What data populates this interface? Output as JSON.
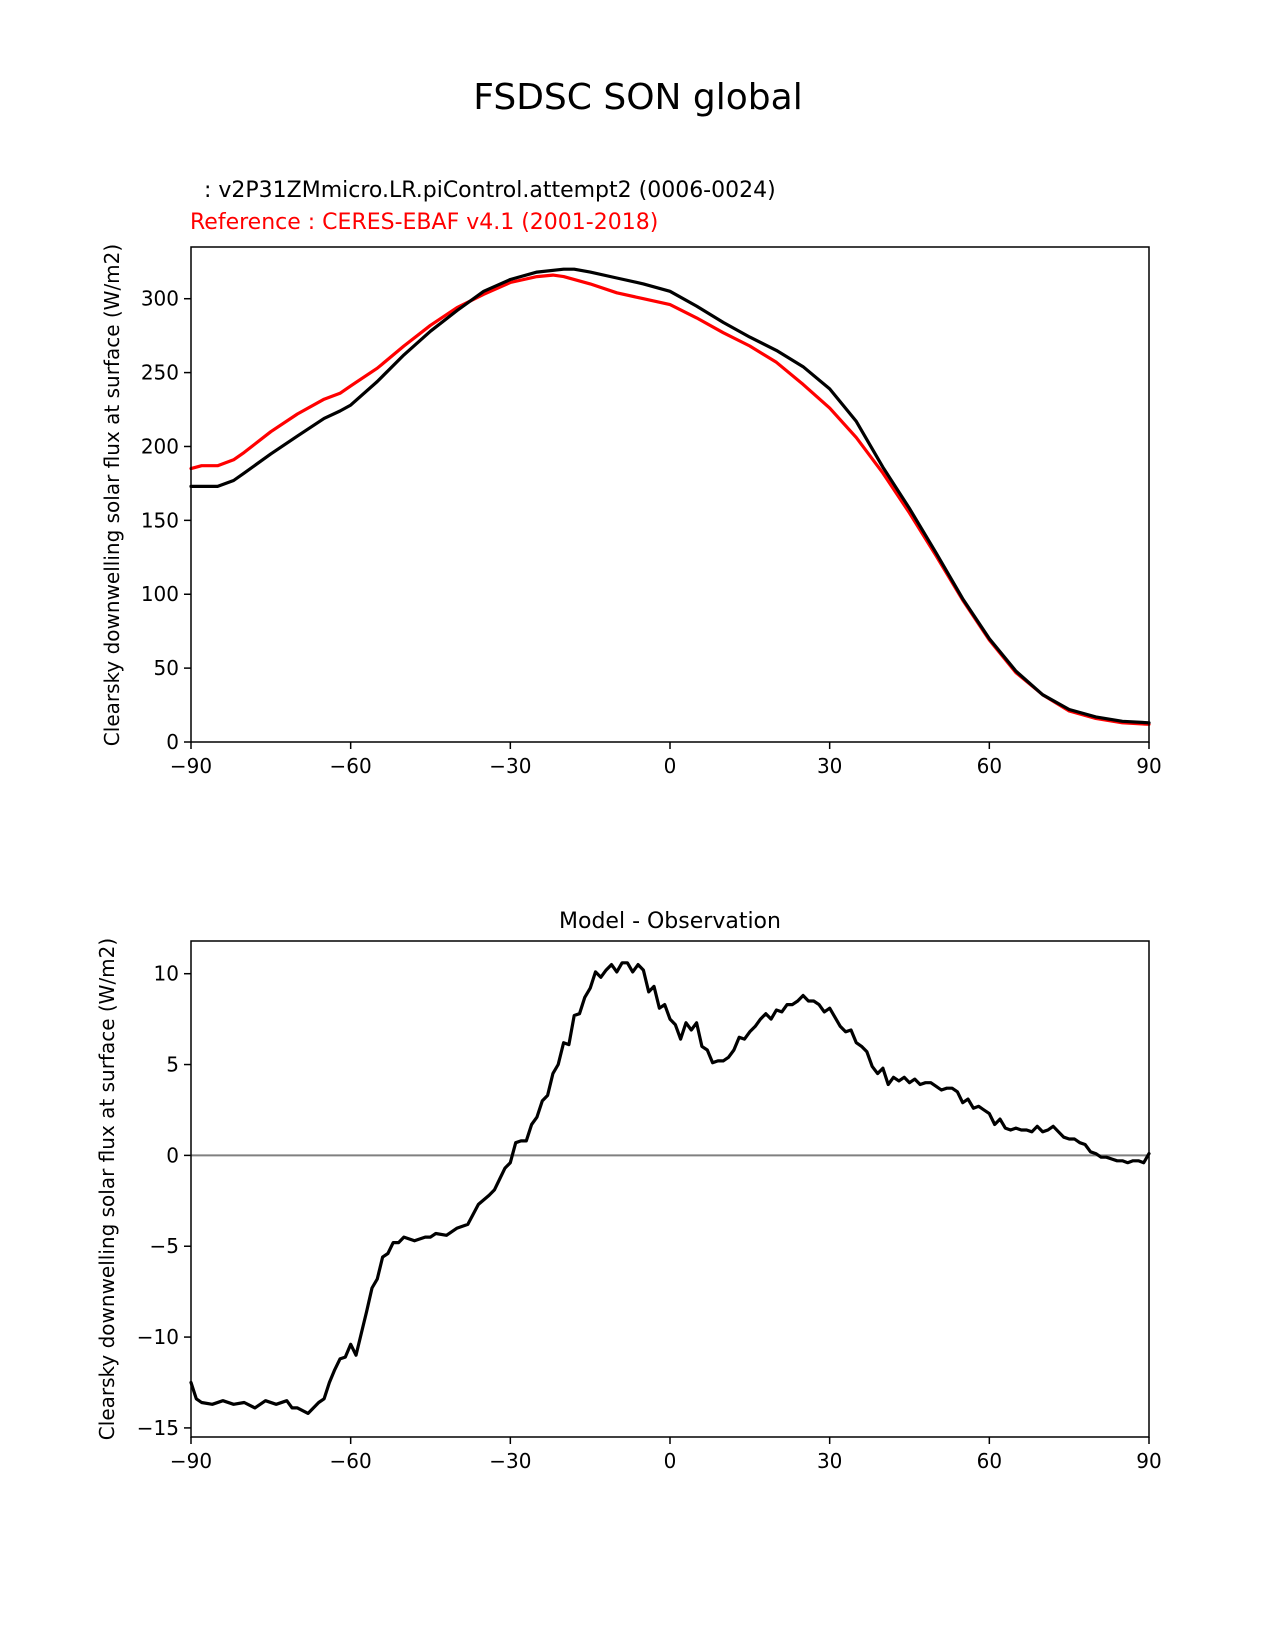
{
  "figure_title": "FSDSC SON global",
  "colors": {
    "test": "#000000",
    "reference": "#ff0000",
    "zero_line": "#808080",
    "axes": "#000000"
  },
  "chart_data": [
    {
      "type": "line",
      "test_label": "  : v2P31ZMmicro.LR.piControl.attempt2 (0006-0024)",
      "ref_label": "Reference : CERES-EBAF v4.1 (2001-2018)",
      "xlabel": "",
      "ylabel": "Clearsky downwelling solar flux at surface (W/m2)",
      "xlim": [
        -90,
        90
      ],
      "ylim": [
        0,
        335
      ],
      "xticks": [
        -90,
        -60,
        -30,
        0,
        30,
        60,
        90
      ],
      "xtick_labels": [
        "−90",
        "−60",
        "−30",
        "0",
        "30",
        "60",
        "90"
      ],
      "yticks": [
        0,
        50,
        100,
        150,
        200,
        250,
        300
      ],
      "ytick_labels": [
        "0",
        "50",
        "100",
        "150",
        "200",
        "250",
        "300"
      ],
      "series": [
        {
          "name": "test",
          "x": [
            -90,
            -85,
            -82,
            -80,
            -75,
            -70,
            -65,
            -62,
            -60,
            -55,
            -50,
            -45,
            -40,
            -35,
            -30,
            -25,
            -20,
            -18,
            -15,
            -10,
            -5,
            0,
            5,
            10,
            15,
            20,
            25,
            30,
            35,
            40,
            45,
            50,
            55,
            60,
            65,
            70,
            75,
            80,
            85,
            90
          ],
          "values": [
            173,
            173,
            177,
            182,
            195,
            207,
            219,
            224,
            228,
            244,
            262,
            278,
            292,
            305,
            313,
            318,
            320,
            320,
            318,
            314,
            310,
            305,
            295,
            284,
            274,
            265,
            254,
            239,
            217,
            186,
            158,
            128,
            97,
            70,
            48,
            32,
            22,
            17,
            14,
            13
          ]
        },
        {
          "name": "reference",
          "x": [
            -90,
            -88,
            -85,
            -82,
            -80,
            -75,
            -70,
            -65,
            -62,
            -60,
            -55,
            -50,
            -45,
            -40,
            -35,
            -30,
            -25,
            -22,
            -20,
            -15,
            -10,
            -5,
            0,
            5,
            10,
            15,
            20,
            25,
            30,
            35,
            40,
            45,
            50,
            55,
            60,
            65,
            70,
            75,
            80,
            85,
            90
          ],
          "values": [
            185,
            187,
            187,
            191,
            196,
            210,
            222,
            232,
            236,
            241,
            253,
            268,
            282,
            294,
            303,
            311,
            315,
            316,
            315,
            310,
            304,
            300,
            296,
            287,
            277,
            268,
            257,
            242,
            226,
            206,
            182,
            155,
            126,
            96,
            69,
            47,
            32,
            21,
            16,
            13,
            12
          ]
        }
      ]
    },
    {
      "type": "line",
      "title": "Model - Observation",
      "xlabel": "",
      "ylabel": "Clearsky downwelling solar flux at surface (W/m2)",
      "xlim": [
        -90,
        90
      ],
      "ylim": [
        -15.5,
        11.8
      ],
      "xticks": [
        -90,
        -60,
        -30,
        0,
        30,
        60,
        90
      ],
      "xtick_labels": [
        "−90",
        "−60",
        "−30",
        "0",
        "30",
        "60",
        "90"
      ],
      "yticks": [
        -15,
        -10,
        -5,
        0,
        5,
        10
      ],
      "ytick_labels": [
        "−15",
        "−10",
        "−5",
        "0",
        "5",
        "10"
      ],
      "zero_line": 0,
      "series": [
        {
          "name": "difference",
          "x": [
            -90,
            -89,
            -88,
            -86,
            -84,
            -82,
            -80,
            -78,
            -76,
            -74,
            -72,
            -71,
            -70,
            -68,
            -66,
            -65,
            -64,
            -63,
            -62,
            -61,
            -60,
            -59,
            -58,
            -57,
            -56,
            -55,
            -54,
            -53,
            -52,
            -51,
            -50,
            -48,
            -46,
            -45,
            -44,
            -42,
            -40,
            -38,
            -36,
            -34,
            -33,
            -32,
            -31,
            -30,
            -29,
            -28,
            -27,
            -26,
            -25,
            -24,
            -23,
            -22,
            -21,
            -20,
            -19,
            -18,
            -17,
            -16,
            -15,
            -14,
            -13,
            -12,
            -11,
            -10,
            -9,
            -8,
            -7,
            -6,
            -5,
            -4,
            -3,
            -2,
            -1,
            0,
            1,
            2,
            3,
            4,
            5,
            6,
            7,
            8,
            9,
            10,
            11,
            12,
            13,
            14,
            15,
            16,
            17,
            18,
            19,
            20,
            21,
            22,
            23,
            24,
            25,
            26,
            27,
            28,
            29,
            30,
            31,
            32,
            33,
            34,
            35,
            36,
            37,
            38,
            39,
            40,
            41,
            42,
            43,
            44,
            45,
            46,
            47,
            48,
            49,
            50,
            51,
            52,
            53,
            54,
            55,
            56,
            57,
            58,
            59,
            60,
            61,
            62,
            63,
            64,
            65,
            66,
            67,
            68,
            69,
            70,
            71,
            72,
            73,
            74,
            75,
            76,
            77,
            78,
            79,
            80,
            81,
            82,
            83,
            84,
            85,
            86,
            87,
            88,
            89,
            90
          ],
          "values": [
            -12.5,
            -13.4,
            -13.6,
            -13.7,
            -13.5,
            -13.7,
            -13.6,
            -13.9,
            -13.5,
            -13.7,
            -13.5,
            -13.9,
            -13.9,
            -14.2,
            -13.6,
            -13.4,
            -12.5,
            -11.8,
            -11.2,
            -11.1,
            -10.4,
            -11.0,
            -9.8,
            -8.6,
            -7.3,
            -6.8,
            -5.6,
            -5.4,
            -4.8,
            -4.8,
            -4.5,
            -4.7,
            -4.5,
            -4.5,
            -4.3,
            -4.4,
            -4.0,
            -3.8,
            -2.7,
            -2.2,
            -1.9,
            -1.3,
            -0.7,
            -0.4,
            0.7,
            0.8,
            0.8,
            1.7,
            2.1,
            3.0,
            3.3,
            4.5,
            5.0,
            6.2,
            6.1,
            7.7,
            7.8,
            8.7,
            9.2,
            10.1,
            9.8,
            10.2,
            10.5,
            10.1,
            10.6,
            10.6,
            10.1,
            10.5,
            10.2,
            9.0,
            9.3,
            8.1,
            8.3,
            7.5,
            7.2,
            6.4,
            7.3,
            6.9,
            7.3,
            6.0,
            5.8,
            5.1,
            5.2,
            5.2,
            5.4,
            5.8,
            6.5,
            6.4,
            6.8,
            7.1,
            7.5,
            7.8,
            7.5,
            8.0,
            7.9,
            8.3,
            8.3,
            8.5,
            8.8,
            8.5,
            8.5,
            8.3,
            7.9,
            8.1,
            7.6,
            7.1,
            6.8,
            6.9,
            6.2,
            6.0,
            5.7,
            4.9,
            4.5,
            4.8,
            3.9,
            4.3,
            4.1,
            4.3,
            4.0,
            4.2,
            3.9,
            4.0,
            4.0,
            3.8,
            3.6,
            3.7,
            3.7,
            3.5,
            2.9,
            3.1,
            2.6,
            2.7,
            2.5,
            2.3,
            1.7,
            2.0,
            1.5,
            1.4,
            1.5,
            1.4,
            1.4,
            1.3,
            1.6,
            1.3,
            1.4,
            1.6,
            1.3,
            1.0,
            0.9,
            0.9,
            0.7,
            0.6,
            0.2,
            0.1,
            -0.1,
            -0.1,
            -0.2,
            -0.3,
            -0.3,
            -0.4,
            -0.3,
            -0.3,
            -0.4,
            0.1
          ]
        }
      ]
    }
  ]
}
